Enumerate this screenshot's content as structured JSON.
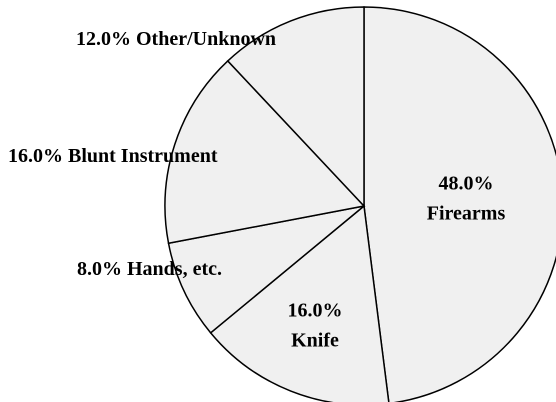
{
  "chart_data": {
    "type": "pie",
    "categories": [
      "Firearms",
      "Knife",
      "Hands, etc.",
      "Blunt Instrument",
      "Other/Unknown"
    ],
    "values": [
      48,
      16,
      8,
      16,
      12
    ],
    "value_labels": [
      "48.0%",
      "16.0%",
      "8.0%",
      "16.0%",
      "12.0%"
    ],
    "color": "#f0f0f0"
  }
}
